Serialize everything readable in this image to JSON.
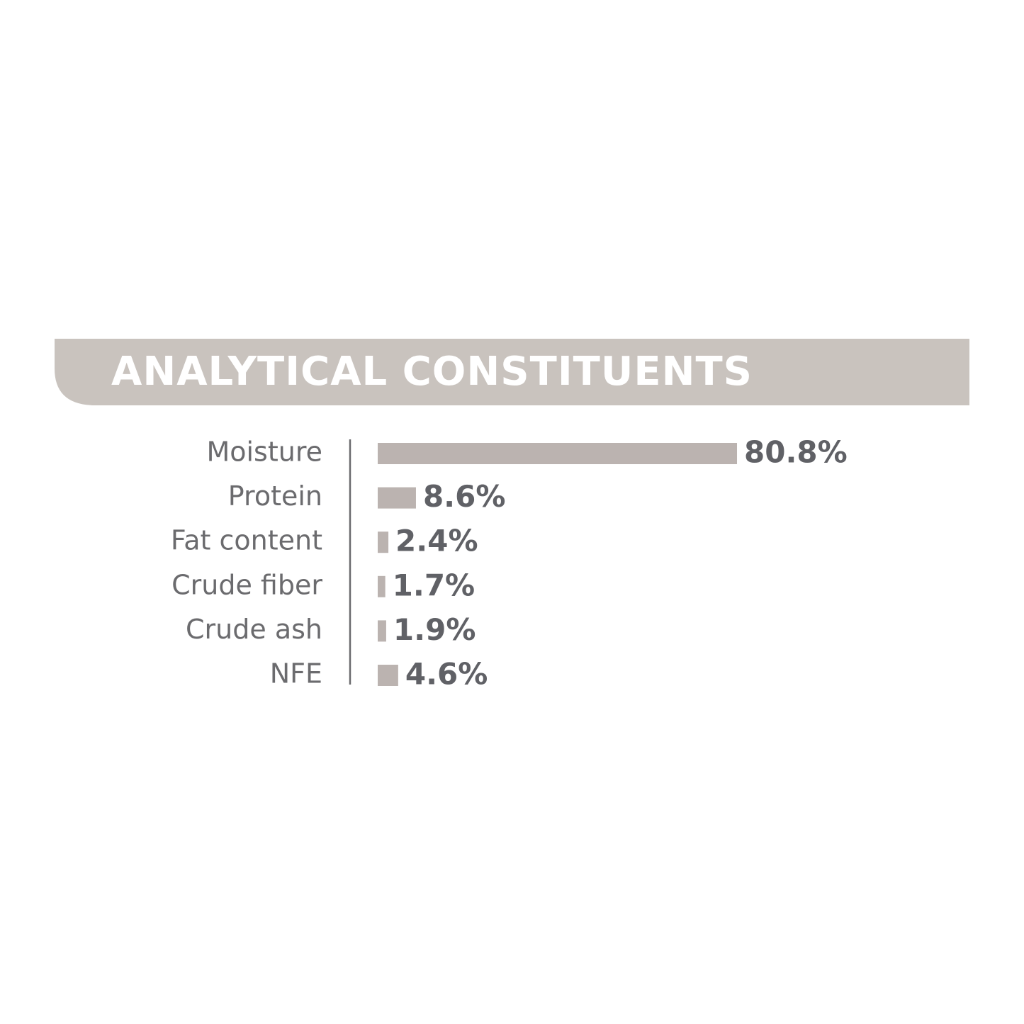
{
  "chart_data": {
    "type": "bar",
    "title": "ANALYTICAL CONSTITUENTS",
    "categories": [
      "Moisture",
      "Protein",
      "Fat content",
      "Crude fiber",
      "Crude ash",
      "NFE"
    ],
    "values": [
      80.8,
      8.6,
      2.4,
      1.7,
      1.9,
      4.6
    ],
    "value_labels": [
      "80.8%",
      "8.6%",
      "2.4%",
      "1.7%",
      "1.9%",
      "4.6%"
    ],
    "color": "#bbb3b0"
  }
}
